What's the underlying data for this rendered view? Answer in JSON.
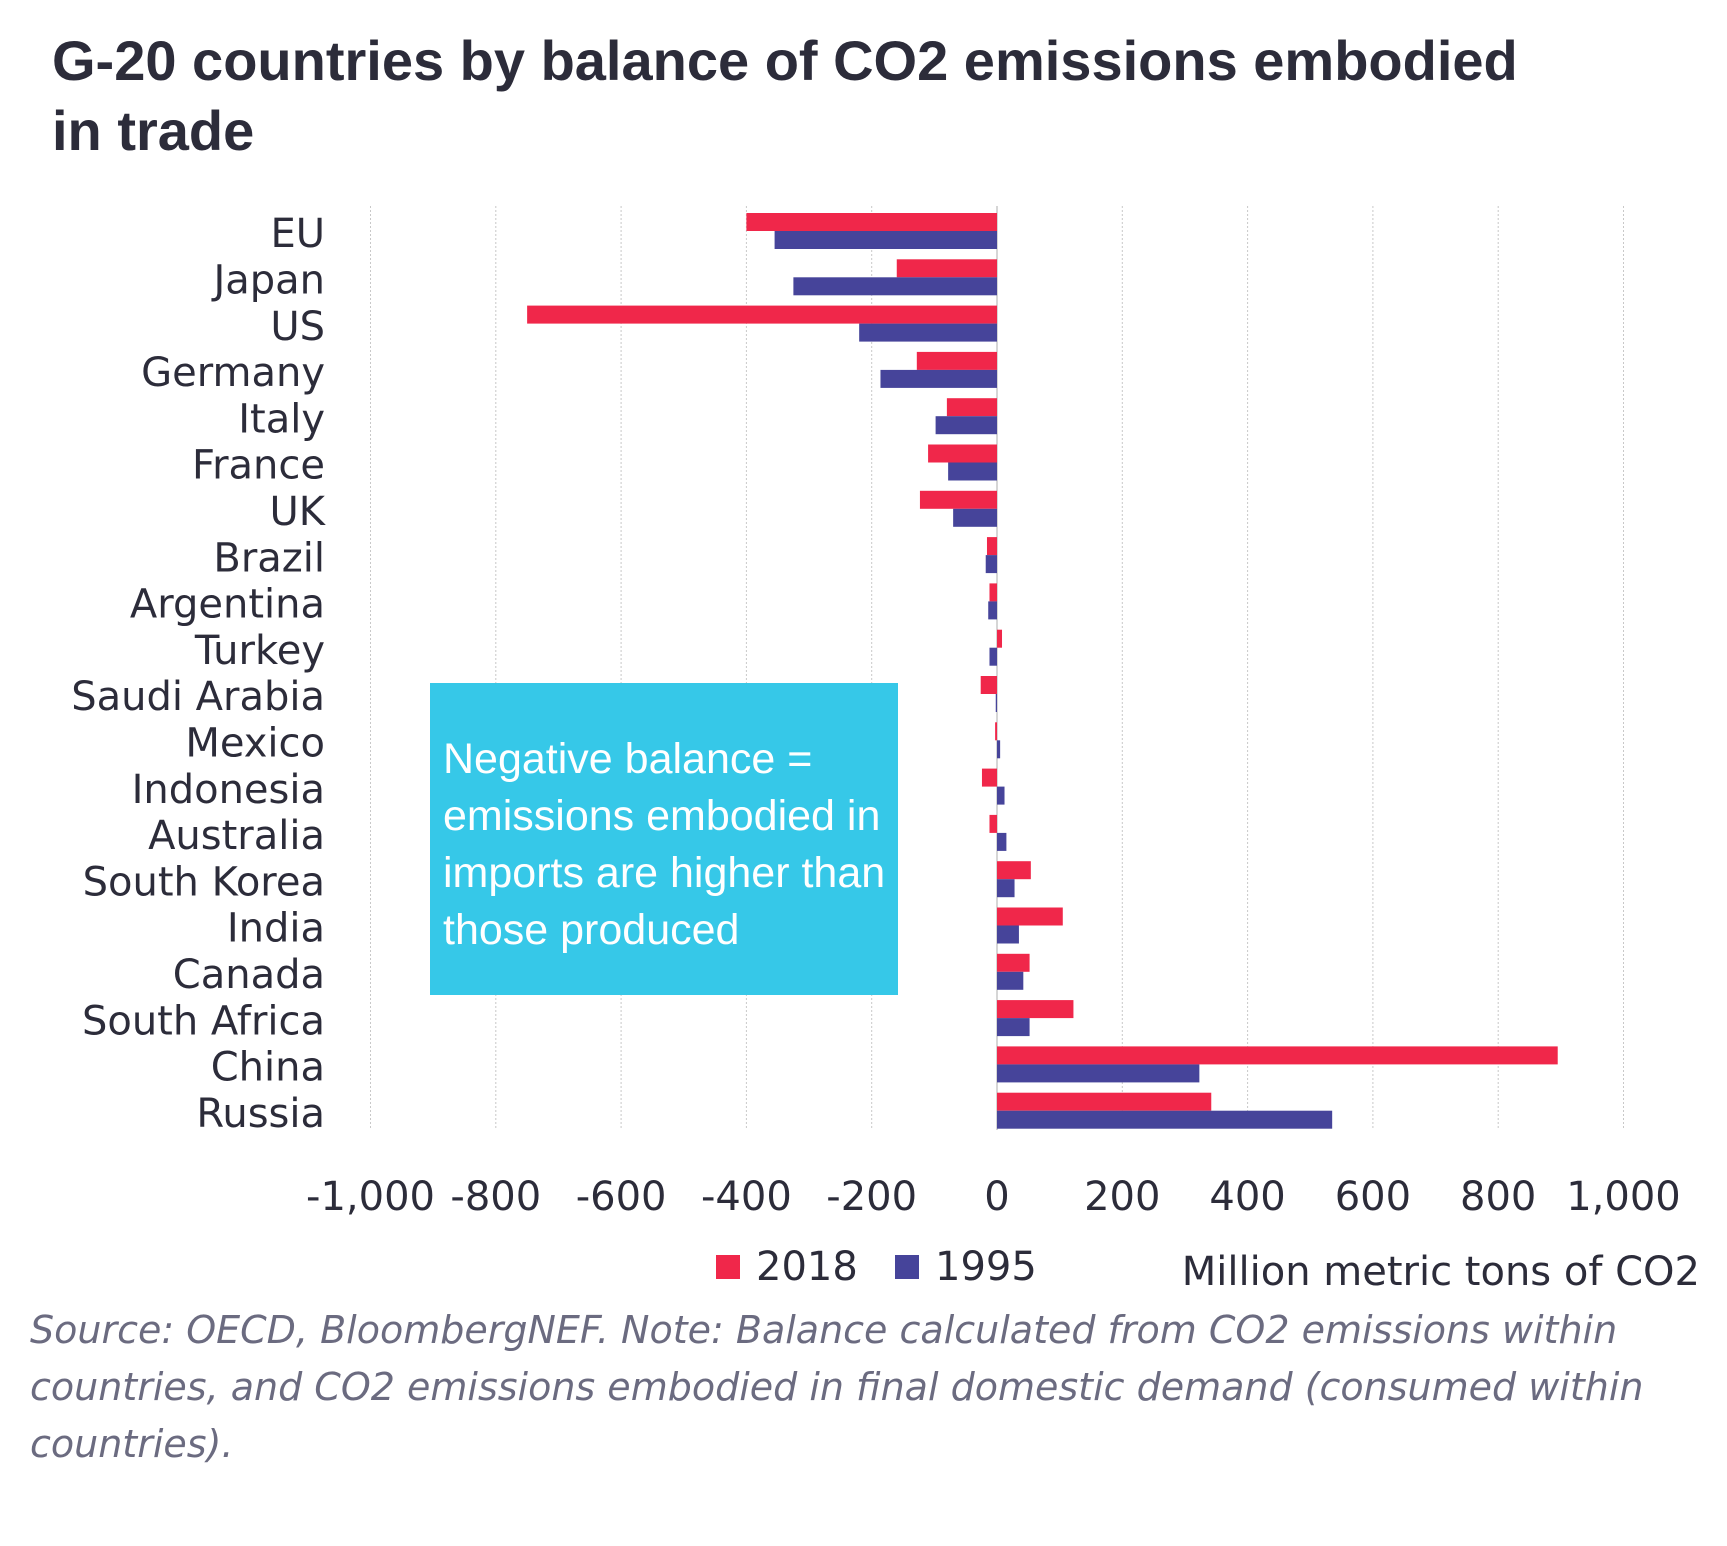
{
  "title": "G-20 countries by balance of CO2 emissions embodied in trade",
  "annotation": "Negative balance = emissions embodied in imports are higher than those produced",
  "source": "Source: OECD, BloombergNEF. Note: Balance calculated from CO2 emissions within countries, and CO2 emissions embodied in final domestic demand (consumed within countries).",
  "colors": {
    "2018": "#f0274a",
    "1995": "#46449a",
    "grid": "#c8c8c8",
    "annotation_bg": "#36c8e8"
  },
  "chart_data": {
    "type": "bar",
    "orientation": "horizontal",
    "title": "G-20 countries by balance of CO2 emissions embodied in trade",
    "xlabel": "Million metric tons of CO2",
    "ylabel": "",
    "xlim": [
      -1000,
      1000
    ],
    "ticks": [
      "-1,000",
      "-800",
      "-600",
      "-400",
      "-200",
      "0",
      "200",
      "400",
      "600",
      "800",
      "1,000"
    ],
    "tick_values": [
      -1000,
      -800,
      -600,
      -400,
      -200,
      0,
      200,
      400,
      600,
      800,
      1000
    ],
    "grid": "vertical dotted",
    "legend": "bottom",
    "categories": [
      "EU",
      "Japan",
      "US",
      "Germany",
      "Italy",
      "France",
      "UK",
      "Brazil",
      "Argentina",
      "Turkey",
      "Saudi Arabia",
      "Mexico",
      "Indonesia",
      "Australia",
      "South Korea",
      "India",
      "Canada",
      "South Africa",
      "China",
      "Russia"
    ],
    "series": [
      {
        "name": "2018",
        "values": [
          -400,
          -160,
          -750,
          -128,
          -80,
          -110,
          -123,
          -16,
          -12,
          8,
          -26,
          -3,
          -24,
          -12,
          54,
          105,
          52,
          122,
          895,
          342
        ]
      },
      {
        "name": "1995",
        "values": [
          -355,
          -325,
          -220,
          -186,
          -98,
          -78,
          -70,
          -18,
          -14,
          -12,
          -2,
          5,
          12,
          15,
          28,
          35,
          42,
          52,
          323,
          535
        ]
      }
    ]
  }
}
